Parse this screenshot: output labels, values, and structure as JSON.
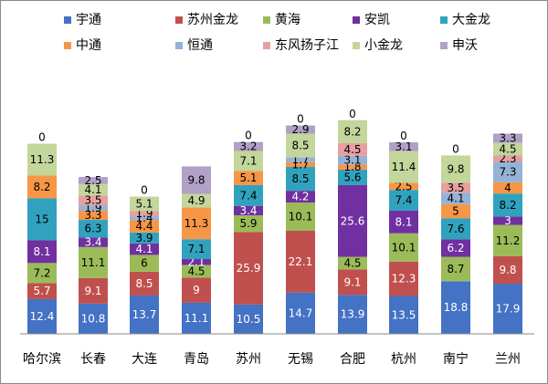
{
  "chart_data": {
    "type": "bar",
    "stacked": true,
    "title": "",
    "xlabel": "",
    "ylabel": "",
    "grid": false,
    "legend_position": "top",
    "ylim": [
      0,
      75
    ],
    "categories": [
      "哈尔滨",
      "长春",
      "大连",
      "青岛",
      "苏州",
      "无锡",
      "合肥",
      "杭州",
      "南宁",
      "兰州"
    ],
    "series": [
      {
        "name": "宇通",
        "color": "#4472c4",
        "values": [
          12.4,
          10.8,
          13.7,
          11.1,
          10.5,
          14.7,
          13.9,
          13.5,
          18.8,
          17.9
        ]
      },
      {
        "name": "苏州金龙",
        "color": "#c0504d",
        "values": [
          5.7,
          9.1,
          8.5,
          9,
          25.9,
          22.1,
          9.1,
          12.3,
          0,
          9.8
        ]
      },
      {
        "name": "黄海",
        "color": "#9bbb59",
        "values": [
          7.2,
          11.1,
          6,
          4.5,
          5.9,
          10.1,
          4.5,
          10.1,
          8.7,
          11.2
        ]
      },
      {
        "name": "安凯",
        "color": "#7030a0",
        "values": [
          8.1,
          3.4,
          4.1,
          2.1,
          3.4,
          4.2,
          25.6,
          8.1,
          6.2,
          3
        ]
      },
      {
        "name": "大金龙",
        "color": "#31a2be",
        "values": [
          15,
          6.3,
          3.9,
          7.1,
          7.4,
          8.5,
          5.6,
          7.4,
          7.6,
          8.2
        ]
      },
      {
        "name": "中通",
        "color": "#f79646",
        "values": [
          8.2,
          3.3,
          4.4,
          11.3,
          5.1,
          1.7,
          1.8,
          2.5,
          5,
          4
        ]
      },
      {
        "name": "恒通",
        "color": "#95b3d7",
        "values": [
          0,
          1.9,
          1.4,
          0,
          0,
          1.7,
          3.1,
          0,
          4.1,
          7.3
        ]
      },
      {
        "name": "东风扬子江",
        "color": "#e6a0a0",
        "values": [
          0,
          3.5,
          1.9,
          0,
          0,
          0,
          4.5,
          0,
          3.5,
          2.3
        ]
      },
      {
        "name": "小金龙",
        "color": "#c3d69b",
        "values": [
          11.3,
          4.1,
          5.1,
          4.9,
          7.1,
          8.5,
          8.2,
          11.4,
          9.8,
          4.5
        ]
      },
      {
        "name": "申沃",
        "color": "#b1a0c7",
        "values": [
          0,
          2.5,
          0,
          9.8,
          3.2,
          2.9,
          0,
          3.1,
          0,
          3.3
        ]
      }
    ],
    "data_labels": [
      [
        [
          "12.4"
        ],
        [
          "5.7"
        ],
        [
          "7.2"
        ],
        [
          "8.1"
        ],
        [
          "15"
        ],
        [
          "8.2"
        ],
        [],
        [],
        [
          "11.3"
        ],
        []
      ],
      [
        [
          "10.8"
        ],
        [
          "9.1"
        ],
        [
          "11.1"
        ],
        [
          "3.4"
        ],
        [
          "6.3"
        ],
        [
          "3.3"
        ],
        [
          "1.9"
        ],
        [
          "3.5"
        ],
        [
          "4.1"
        ],
        [
          "2.5"
        ]
      ],
      [
        [
          "13.7"
        ],
        [
          "8.5"
        ],
        [
          "6"
        ],
        [
          "4.1"
        ],
        [
          "3.9"
        ],
        [
          "4.4"
        ],
        [
          "1.4"
        ],
        [
          "1.9"
        ],
        [
          "5.1"
        ],
        []
      ],
      [
        [
          "11.1"
        ],
        [
          "9"
        ],
        [
          "4.5"
        ],
        [
          "2.1"
        ],
        [
          "7.1"
        ],
        [
          "11.3"
        ],
        [],
        [],
        [
          "4.9"
        ],
        [
          "9.8"
        ]
      ],
      [
        [
          "10.5"
        ],
        [
          "25.9"
        ],
        [
          "5.9"
        ],
        [
          "3.4"
        ],
        [
          "7.4"
        ],
        [
          "5.1"
        ],
        [],
        [],
        [
          "7.1"
        ],
        [
          "3.2"
        ]
      ],
      [
        [
          "14.7"
        ],
        [
          "22.1"
        ],
        [
          "10.1"
        ],
        [
          "4.2"
        ],
        [
          "8.5"
        ],
        [
          "1.7"
        ],
        [
          "1.7"
        ],
        [],
        [
          "8.5"
        ],
        [
          "2.9"
        ]
      ],
      [
        [
          "13.9"
        ],
        [
          "9.1"
        ],
        [
          "4.5"
        ],
        [
          "25.6"
        ],
        [
          "5.6"
        ],
        [
          "1.8"
        ],
        [
          "3.1"
        ],
        [
          "4.5"
        ],
        [
          "8.2"
        ],
        []
      ],
      [
        [
          "13.5"
        ],
        [
          "12.3"
        ],
        [
          "10.1"
        ],
        [
          "8.1"
        ],
        [
          "7.4"
        ],
        [
          "2.5"
        ],
        [],
        [],
        [
          "11.4"
        ],
        [
          "3.1"
        ]
      ],
      [
        [
          "18.8"
        ],
        [
          "0"
        ],
        [
          "8.7"
        ],
        [
          "6.2"
        ],
        [
          "7.6"
        ],
        [
          "5"
        ],
        [
          "4.1"
        ],
        [
          "3.5"
        ],
        [
          "9.8"
        ],
        []
      ],
      [
        [
          "17.9"
        ],
        [
          "9.8"
        ],
        [
          "11.2"
        ],
        [
          "3"
        ],
        [
          "8.2"
        ],
        [
          "4"
        ],
        [
          "7.3"
        ],
        [
          "2.3"
        ],
        [
          "4.5"
        ],
        [
          "3.3"
        ]
      ]
    ],
    "top_zero_labels": [
      [
        "0",
        "0",
        "0"
      ],
      [],
      [
        "0"
      ],
      [],
      [
        "0"
      ],
      [
        "0"
      ],
      [
        "0"
      ],
      [
        "0"
      ],
      [
        "0"
      ],
      []
    ]
  }
}
